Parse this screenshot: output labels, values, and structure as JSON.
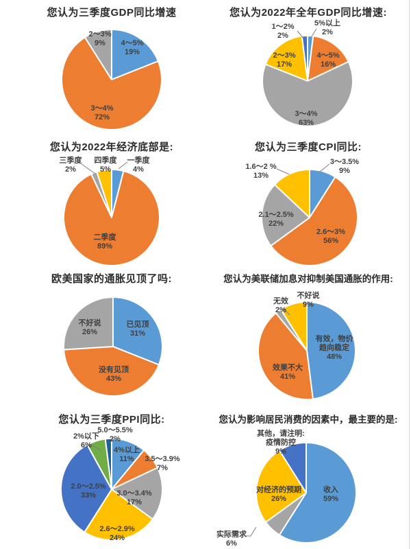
{
  "chart_data": [
    {
      "type": "pie",
      "title": "您认为三季度GDP同比增速",
      "start_angle_deg": 0,
      "direction": "clockwise",
      "slices": [
        {
          "label": "4～5%",
          "pct": 19,
          "color": "#5B9BD5"
        },
        {
          "label": "3～4%",
          "pct": 72,
          "color": "#ED7D31"
        },
        {
          "label": "2～3%",
          "pct": 9,
          "color": "#A5A5A5"
        }
      ]
    },
    {
      "type": "pie",
      "title": "您认为2022年全年GDP同比增速:",
      "start_angle_deg": 0,
      "direction": "clockwise",
      "slices": [
        {
          "label": "5%以上",
          "pct": 2,
          "color": "#5B9BD5"
        },
        {
          "label": "4～5%",
          "pct": 16,
          "color": "#ED7D31"
        },
        {
          "label": "3～4%",
          "pct": 63,
          "color": "#A5A5A5"
        },
        {
          "label": "2～3%",
          "pct": 17,
          "color": "#FFC000"
        },
        {
          "label": "1～2%",
          "pct": 2,
          "color": "#4472C4"
        }
      ]
    },
    {
      "type": "pie",
      "title": "您认为2022年经济底部是:",
      "start_angle_deg": 0,
      "direction": "clockwise",
      "slices": [
        {
          "label": "一季度",
          "pct": 4,
          "color": "#5B9BD5"
        },
        {
          "label": "二季度",
          "pct": 89,
          "color": "#ED7D31"
        },
        {
          "label": "三季度",
          "pct": 2,
          "color": "#A5A5A5"
        },
        {
          "label": "四季度",
          "pct": 5,
          "color": "#FFC000"
        }
      ]
    },
    {
      "type": "pie",
      "title": "您认为三季度CPI同比:",
      "start_angle_deg": 0,
      "direction": "clockwise",
      "slices": [
        {
          "label": "3～3.5%",
          "pct": 9,
          "color": "#5B9BD5"
        },
        {
          "label": "2.6～3%",
          "pct": 56,
          "color": "#ED7D31"
        },
        {
          "label": "2.1～2.5%",
          "pct": 22,
          "color": "#A5A5A5"
        },
        {
          "label": "1.6～2 %",
          "pct": 13,
          "color": "#FFC000"
        }
      ]
    },
    {
      "type": "pie",
      "title": "欧美国家的通胀见顶了吗:",
      "start_angle_deg": 0,
      "direction": "clockwise",
      "slices": [
        {
          "label": "已见顶",
          "pct": 31,
          "color": "#5B9BD5"
        },
        {
          "label": "没有见顶",
          "pct": 43,
          "color": "#ED7D31"
        },
        {
          "label": "不好说",
          "pct": 26,
          "color": "#A5A5A5"
        }
      ]
    },
    {
      "type": "pie",
      "title": "您认为美联储加息对抑制美国通胀的作用:",
      "start_angle_deg": 0,
      "direction": "clockwise",
      "slices": [
        {
          "label": "有效，物价\n趋向稳定",
          "pct": 48,
          "color": "#5B9BD5"
        },
        {
          "label": "效果不大",
          "pct": 41,
          "color": "#ED7D31"
        },
        {
          "label": "无效",
          "pct": 2,
          "color": "#A5A5A5"
        },
        {
          "label": "不好说",
          "pct": 9,
          "color": "#FFC000"
        }
      ]
    },
    {
      "type": "pie",
      "title": "您认为三季度PPI同比:",
      "start_angle_deg": 0,
      "direction": "clockwise",
      "slices": [
        {
          "label": "4%以上",
          "pct": 11,
          "color": "#5B9BD5"
        },
        {
          "label": "3.5～3.9%",
          "pct": 7,
          "color": "#ED7D31"
        },
        {
          "label": "3.0～3.4%",
          "pct": 17,
          "color": "#A5A5A5"
        },
        {
          "label": "2.6～2.9%",
          "pct": 24,
          "color": "#FFC000"
        },
        {
          "label": "2.0～2.5%",
          "pct": 33,
          "color": "#4472C4"
        },
        {
          "label": "2%以下",
          "pct": 6,
          "color": "#70AD47"
        },
        {
          "label": "5.0～5.5%",
          "pct": 2,
          "color": "#255E91"
        }
      ]
    },
    {
      "type": "pie",
      "title": "您认为影响居民消费的因素中，最主要的是:",
      "start_angle_deg": 0,
      "direction": "clockwise",
      "slices": [
        {
          "label": "收入",
          "pct": 59,
          "color": "#5B9BD5"
        },
        {
          "label": "实际需求",
          "pct": 6,
          "color": "#A5A5A5"
        },
        {
          "label": "对经济的预期",
          "pct": 26,
          "color": "#FFC000"
        },
        {
          "label": "其他，请注明:\n疫情防控",
          "pct": 9,
          "color": "#4472C4"
        }
      ]
    }
  ]
}
